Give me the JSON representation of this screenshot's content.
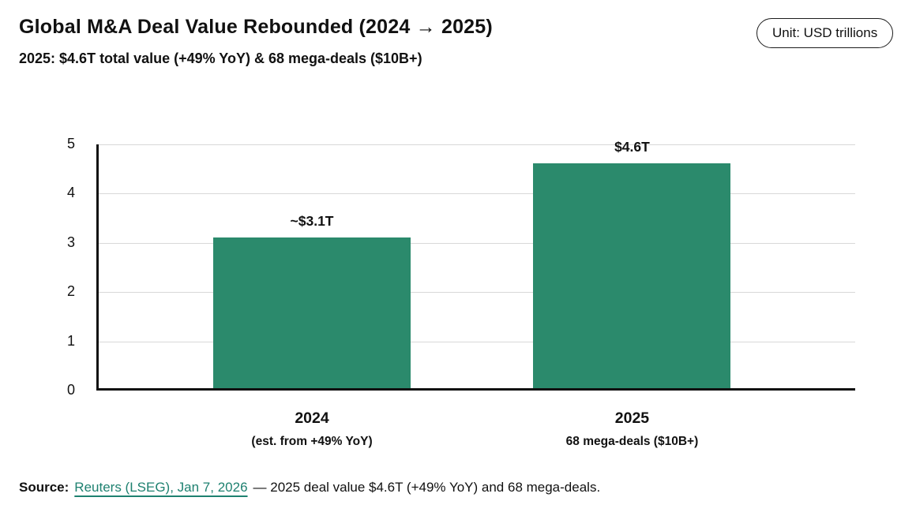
{
  "header": {
    "title": "Global M&A Deal Value Rebounded (2024 → 2025)",
    "subtitle": "2025: $4.6T total value (+49% YoY) & 68 mega-deals ($10B+)",
    "unit_badge": "Unit: USD trillions"
  },
  "chart_data": {
    "type": "bar",
    "title": "Global M&A Deal Value Rebounded (2024 → 2025)",
    "categories": [
      "2024",
      "2025"
    ],
    "category_sublabels": [
      "(est. from +49% YoY)",
      "68 mega-deals ($10B+)"
    ],
    "values": [
      3.1,
      4.6
    ],
    "bar_labels": [
      "~$3.1T",
      "$4.6T"
    ],
    "xlabel": "",
    "ylabel": "",
    "ylim": [
      0,
      5
    ],
    "yticks": [
      0,
      1,
      2,
      3,
      4,
      5
    ],
    "grid": true,
    "legend": "none",
    "unit": "USD trillions",
    "bar_color": "#2b8a6c"
  },
  "footer": {
    "source_label": "Source:",
    "source_link": "Reuters (LSEG), Jan 7, 2026",
    "source_rest": "— 2025 deal value $4.6T (+49% YoY) and 68 mega-deals."
  },
  "colors": {
    "bar": "#2b8a6c",
    "link": "#1e8170",
    "grid": "#d8d8d8",
    "axis": "#111111",
    "text": "#111111"
  }
}
